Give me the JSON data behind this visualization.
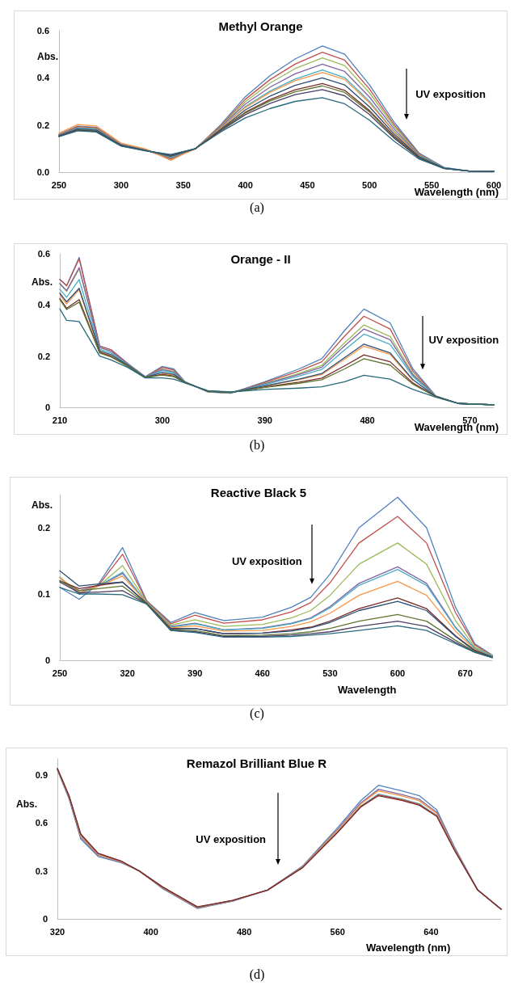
{
  "chart_data": [
    {
      "type": "line",
      "title": "Methyl Orange",
      "xlabel": "Wavelength (nm)",
      "ylabel": "Abs.",
      "annotations": [
        "UV exposition",
        "(a)"
      ],
      "x": [
        250,
        265,
        280,
        300,
        320,
        340,
        360,
        380,
        400,
        420,
        440,
        462,
        480,
        500,
        520,
        540,
        560,
        580,
        600
      ],
      "xlim": [
        250,
        600
      ],
      "xticks": [
        250,
        300,
        350,
        400,
        450,
        500,
        550,
        600
      ],
      "ylim": [
        0,
        0.6
      ],
      "yticks": [
        {
          "value": 0,
          "label": "0.0"
        },
        0.2,
        0.4,
        0.6
      ],
      "series": [
        {
          "color": "#4f81bd",
          "values": [
            0.16,
            0.195,
            0.19,
            0.12,
            0.095,
            0.055,
            0.1,
            0.2,
            0.32,
            0.41,
            0.48,
            0.535,
            0.5,
            0.37,
            0.21,
            0.08,
            0.02,
            0.005,
            0.004
          ]
        },
        {
          "color": "#c0504d",
          "values": [
            0.159,
            0.193,
            0.188,
            0.119,
            0.094,
            0.057,
            0.1,
            0.196,
            0.309,
            0.393,
            0.458,
            0.509,
            0.475,
            0.352,
            0.2,
            0.077,
            0.019,
            null,
            null
          ]
        },
        {
          "color": "#9bbb59",
          "values": [
            0.158,
            0.19,
            0.185,
            0.118,
            0.094,
            0.06,
            0.1,
            0.193,
            0.299,
            0.378,
            0.439,
            0.485,
            0.452,
            0.336,
            0.192,
            0.074,
            0.019,
            null,
            null
          ]
        },
        {
          "color": "#8064a2",
          "values": [
            0.157,
            0.188,
            0.183,
            0.117,
            0.093,
            0.062,
            0.1,
            0.19,
            0.289,
            0.361,
            0.417,
            0.458,
            0.427,
            0.318,
            0.182,
            0.071,
            0.018,
            0.005,
            0.004
          ]
        },
        {
          "color": "#4bacc6",
          "values": [
            0.155,
            0.186,
            0.181,
            0.115,
            0.093,
            0.064,
            0.1,
            0.186,
            0.278,
            0.344,
            0.395,
            0.433,
            0.401,
            0.3,
            0.172,
            0.068,
            0.018,
            0.005,
            0.004
          ]
        },
        {
          "color": "#f79646",
          "values": [
            0.165,
            0.202,
            0.196,
            0.123,
            0.098,
            0.05,
            0.102,
            0.185,
            0.274,
            0.339,
            0.388,
            0.423,
            0.393,
            0.294,
            0.169,
            0.067,
            null,
            null,
            null
          ]
        },
        {
          "color": "#2c4d75",
          "values": [
            0.154,
            0.183,
            0.178,
            0.114,
            0.092,
            0.067,
            0.1,
            0.181,
            0.264,
            0.323,
            0.368,
            0.4,
            0.37,
            0.277,
            0.16,
            0.065,
            0.017,
            0.005,
            0.004
          ]
        },
        {
          "color": "#772c2a",
          "values": [
            0.153,
            0.18,
            0.175,
            0.113,
            0.091,
            0.07,
            0.1,
            0.178,
            0.254,
            0.308,
            0.349,
            0.376,
            0.347,
            0.261,
            0.152,
            0.062,
            0.016,
            0.005,
            0.004
          ]
        },
        {
          "color": "#5f7530",
          "values": [
            0.152,
            0.18,
            0.175,
            0.112,
            0.091,
            0.07,
            0.1,
            0.177,
            0.251,
            0.302,
            0.341,
            0.366,
            0.338,
            0.255,
            0.148,
            0.061,
            0.016,
            0.005,
            0.004
          ]
        },
        {
          "color": "#4d3b62",
          "values": [
            0.152,
            0.178,
            0.173,
            0.112,
            0.091,
            0.072,
            0.1,
            0.175,
            0.244,
            0.292,
            0.329,
            0.35,
            0.324,
            0.244,
            0.143,
            0.059,
            0.016,
            0.005,
            0.004
          ]
        },
        {
          "color": "#276a7c",
          "values": [
            0.15,
            0.175,
            0.17,
            0.11,
            0.09,
            0.075,
            0.1,
            0.17,
            0.23,
            0.27,
            0.3,
            0.316,
            0.29,
            0.22,
            0.13,
            0.055,
            0.015,
            0.005,
            0.004
          ]
        }
      ]
    },
    {
      "type": "line",
      "title": "Orange - II",
      "xlabel": "Wavelength (nm)",
      "ylabel": "Abs.",
      "annotations": [
        "UV exposition",
        "(b)"
      ],
      "x": [
        210,
        216,
        227,
        245,
        255,
        270,
        285,
        300,
        310,
        320,
        340,
        360,
        390,
        420,
        440,
        460,
        477,
        500,
        520,
        540,
        560,
        591
      ],
      "xlim": [
        210,
        591
      ],
      "xticks": [
        210,
        300,
        390,
        480,
        570
      ],
      "ylim": [
        0,
        0.6
      ],
      "yticks": [
        0,
        0.2,
        0.4,
        0.6
      ],
      "series": [
        {
          "color": "#4f81bd",
          "values": [
            0.5,
            0.475,
            0.586,
            0.24,
            0.225,
            0.17,
            0.12,
            0.16,
            0.15,
            0.1,
            0.06,
            0.055,
            0.1,
            0.15,
            0.19,
            0.3,
            0.384,
            0.33,
            0.15,
            0.045,
            0.015,
            0.01
          ]
        },
        {
          "color": "#c0504d",
          "values": [
            0.5,
            0.475,
            0.58,
            0.24,
            0.225,
            0.17,
            0.119,
            0.155,
            0.146,
            0.099,
            0.061,
            0.056,
            0.097,
            0.142,
            0.178,
            0.278,
            0.356,
            0.306,
            0.141,
            0.044,
            0.015,
            0.01
          ]
        },
        {
          "color": "#9bbb59",
          "values": [
            0.482,
            0.453,
            0.541,
            0.234,
            0.219,
            0.168,
            0.119,
            0.149,
            0.14,
            0.099,
            0.061,
            0.056,
            0.093,
            0.132,
            0.164,
            0.252,
            0.322,
            0.277,
            0.131,
            0.044,
            0.015,
            0.01
          ]
        },
        {
          "color": "#8064a2",
          "values": [
            0.484,
            0.456,
            0.546,
            0.234,
            0.219,
            0.168,
            0.119,
            0.147,
            0.138,
            0.099,
            0.062,
            0.057,
            0.091,
            0.128,
            0.157,
            0.24,
            0.306,
            0.264,
            0.126,
            0.044,
            0.015,
            0.01
          ]
        },
        {
          "color": "#4bacc6",
          "values": [
            0.462,
            0.43,
            0.499,
            0.227,
            0.212,
            0.165,
            0.118,
            0.143,
            0.135,
            0.098,
            0.062,
            0.057,
            0.089,
            0.122,
            0.148,
            0.224,
            0.286,
            0.246,
            0.12,
            0.043,
            0.015,
            0.01
          ]
        },
        {
          "color": "#f79646",
          "values": [
            0.44,
            0.404,
            0.46,
            0.216,
            0.201,
            0.161,
            null,
            0.133,
            0.126,
            null,
            null,
            null,
            0.083,
            0.108,
            0.128,
            0.188,
            0.239,
            0.207,
            0.105,
            null,
            null,
            null
          ]
        },
        {
          "color": "#2c4d75",
          "values": [
            0.446,
            0.412,
            0.465,
            0.221,
            0.206,
            0.163,
            0.117,
            0.136,
            0.129,
            0.097,
            0.063,
            0.058,
            0.084,
            0.11,
            0.132,
            0.194,
            0.247,
            0.213,
            0.108,
            0.042,
            0.015,
            0.01
          ]
        },
        {
          "color": "#772c2a",
          "values": [
            0.425,
            0.387,
            0.421,
            0.214,
            0.199,
            0.16,
            0.117,
            0.129,
            0.122,
            0.097,
            0.063,
            0.058,
            0.079,
            0.098,
            0.114,
            0.162,
            0.205,
            0.178,
            0.095,
            0.042,
            0.015,
            0.01
          ]
        },
        {
          "color": "#5f7530",
          "values": [
            0.421,
            0.382,
            0.411,
            0.212,
            0.197,
            0.16,
            0.116,
            0.126,
            0.12,
            0.096,
            0.064,
            0.059,
            0.078,
            0.094,
            0.108,
            0.15,
            0.19,
            0.165,
            0.09,
            0.041,
            0.015,
            0.01
          ]
        },
        {
          "color": "#276a7c",
          "values": [
            0.385,
            0.34,
            0.335,
            0.2,
            0.185,
            0.155,
            0.115,
            0.115,
            0.11,
            0.095,
            0.065,
            0.06,
            0.07,
            0.075,
            0.08,
            0.1,
            0.125,
            0.11,
            0.07,
            0.04,
            0.015,
            0.01
          ]
        }
      ]
    },
    {
      "type": "line",
      "title": "Reactive Black 5",
      "xlabel": "Wavelength",
      "ylabel": "Abs.",
      "annotations": [
        "UV exposition",
        "(c)"
      ],
      "x": [
        250,
        270,
        290,
        315,
        340,
        365,
        390,
        420,
        460,
        490,
        510,
        530,
        560,
        600,
        630,
        660,
        680,
        698
      ],
      "xlim": [
        250,
        698
      ],
      "xticks": [
        250,
        320,
        390,
        460,
        530,
        600,
        670
      ],
      "ylim": [
        0,
        0.25
      ],
      "yticks": [
        0,
        0.1,
        0.2
      ],
      "series": [
        {
          "color": "#4f81bd",
          "values": [
            0.11,
            0.092,
            0.115,
            0.17,
            0.09,
            0.057,
            0.072,
            0.06,
            0.065,
            0.08,
            0.095,
            0.13,
            0.2,
            0.246,
            0.2,
            0.08,
            0.025,
            0.008
          ]
        },
        {
          "color": "#c0504d",
          "values": [
            0.125,
            0.1,
            0.113,
            0.16,
            0.089,
            0.055,
            0.068,
            0.056,
            0.061,
            0.073,
            0.087,
            0.117,
            0.177,
            0.217,
            0.177,
            0.072,
            0.023,
            0.007
          ]
        },
        {
          "color": "#9bbb59",
          "values": [
            0.125,
            0.1,
            0.112,
            0.143,
            0.088,
            0.053,
            0.061,
            0.051,
            0.054,
            0.064,
            0.075,
            0.098,
            0.145,
            0.177,
            0.145,
            0.06,
            0.02,
            0.007
          ]
        },
        {
          "color": "#8064a2",
          "values": [
            0.12,
            0.105,
            0.112,
            0.131,
            0.087,
            0.051,
            0.056,
            0.046,
            0.049,
            0.056,
            0.064,
            0.081,
            0.116,
            0.141,
            0.116,
            0.05,
            0.018,
            0.006
          ]
        },
        {
          "color": "#4bacc6",
          "values": [
            0.125,
            0.1,
            0.112,
            0.133,
            0.087,
            0.05,
            0.055,
            0.046,
            0.048,
            0.055,
            0.063,
            0.079,
            0.113,
            0.137,
            0.113,
            0.049,
            0.018,
            0.006
          ]
        },
        {
          "color": "#f79646",
          "values": [
            0.125,
            0.102,
            0.112,
            0.127,
            0.087,
            0.049,
            0.052,
            0.044,
            0.045,
            0.051,
            0.058,
            0.071,
            0.098,
            0.119,
            0.098,
            0.044,
            0.016,
            0.005
          ]
        },
        {
          "color": "#772c2a",
          "values": [
            0.12,
            0.108,
            0.113,
            0.118,
            0.086,
            0.048,
            0.048,
            0.04,
            0.041,
            0.046,
            0.05,
            0.059,
            0.078,
            0.094,
            0.078,
            0.037,
            0.015,
            0.005
          ]
        },
        {
          "color": "#2c4d75",
          "values": [
            0.135,
            0.112,
            0.115,
            0.118,
            0.086,
            0.047,
            0.048,
            0.04,
            0.041,
            0.044,
            0.049,
            0.057,
            0.075,
            0.089,
            0.075,
            0.036,
            0.014,
            0.005
          ]
        },
        {
          "color": "#5f7530",
          "values": [
            0.12,
            0.105,
            0.108,
            0.112,
            0.085,
            0.046,
            0.045,
            0.037,
            0.038,
            0.04,
            0.043,
            0.048,
            0.059,
            0.069,
            0.059,
            0.03,
            0.013,
            0.004
          ]
        },
        {
          "color": "#4d3b62",
          "values": [
            0.118,
            0.102,
            0.103,
            0.105,
            0.085,
            0.045,
            0.043,
            0.036,
            0.036,
            0.038,
            0.04,
            0.043,
            0.051,
            0.059,
            0.051,
            0.027,
            0.012,
            0.004
          ]
        },
        {
          "color": "#276a7c",
          "values": [
            0.11,
            0.1,
            0.1,
            0.099,
            0.085,
            0.045,
            0.042,
            0.035,
            0.035,
            0.036,
            0.038,
            0.04,
            0.045,
            0.052,
            0.045,
            0.025,
            0.012,
            0.004
          ]
        }
      ]
    },
    {
      "type": "line",
      "title": "Remazol Brilliant Blue R",
      "xlabel": "Wavelength (nm)",
      "ylabel": "Abs.",
      "annotations": [
        "UV exposition",
        "(d)"
      ],
      "x": [
        320,
        330,
        340,
        355,
        375,
        390,
        410,
        440,
        470,
        500,
        530,
        560,
        580,
        595,
        615,
        630,
        645,
        660,
        680,
        700
      ],
      "xlim": [
        320,
        700
      ],
      "xticks": [
        320,
        400,
        480,
        560,
        640
      ],
      "ylim": [
        0,
        1
      ],
      "yticks": [
        0,
        0.3,
        0.6,
        0.9
      ],
      "series": [
        {
          "color": "#4f81bd",
          "values": [
            0.93,
            0.75,
            0.5,
            0.39,
            0.35,
            0.3,
            0.19,
            0.065,
            0.11,
            0.18,
            0.33,
            0.57,
            0.74,
            0.835,
            0.8,
            0.77,
            0.68,
            0.45,
            0.18,
            0.06
          ]
        },
        {
          "color": "#8064a2",
          "values": [
            0.934,
            0.758,
            0.511,
            0.398,
            0.354,
            0.3,
            0.194,
            0.069,
            0.112,
            0.18,
            0.326,
            0.559,
            0.725,
            0.81,
            0.777,
            0.747,
            0.665,
            0.442,
            0.18,
            0.06
          ]
        },
        {
          "color": "#f79646",
          "values": [
            0.935,
            0.761,
            0.516,
            0.401,
            0.355,
            0.3,
            0.195,
            0.07,
            0.113,
            0.18,
            0.325,
            0.554,
            0.718,
            0.8,
            0.768,
            0.738,
            0.658,
            0.439,
            0.18,
            0.06
          ]
        },
        {
          "color": "#4bacc6",
          "values": [
            0.938,
            0.767,
            0.525,
            0.407,
            0.358,
            0.3,
            0.199,
            0.073,
            0.114,
            0.18,
            0.322,
            0.545,
            0.706,
            0.78,
            0.749,
            0.719,
            0.646,
            0.433,
            0.18,
            0.06
          ]
        },
        {
          "color": "#c0504d",
          "values": [
            0.939,
            0.768,
            0.528,
            0.408,
            0.359,
            0.3,
            0.199,
            0.074,
            0.115,
            0.18,
            0.321,
            0.542,
            0.703,
            0.775,
            0.745,
            0.715,
            0.643,
            0.432,
            0.18,
            0.06
          ]
        },
        {
          "color": "#772c2a",
          "values": [
            0.94,
            0.77,
            0.53,
            0.41,
            0.36,
            0.3,
            0.2,
            0.075,
            0.115,
            0.18,
            0.32,
            0.54,
            0.7,
            0.77,
            0.74,
            0.71,
            0.64,
            0.43,
            0.18,
            0.06
          ]
        }
      ]
    }
  ]
}
